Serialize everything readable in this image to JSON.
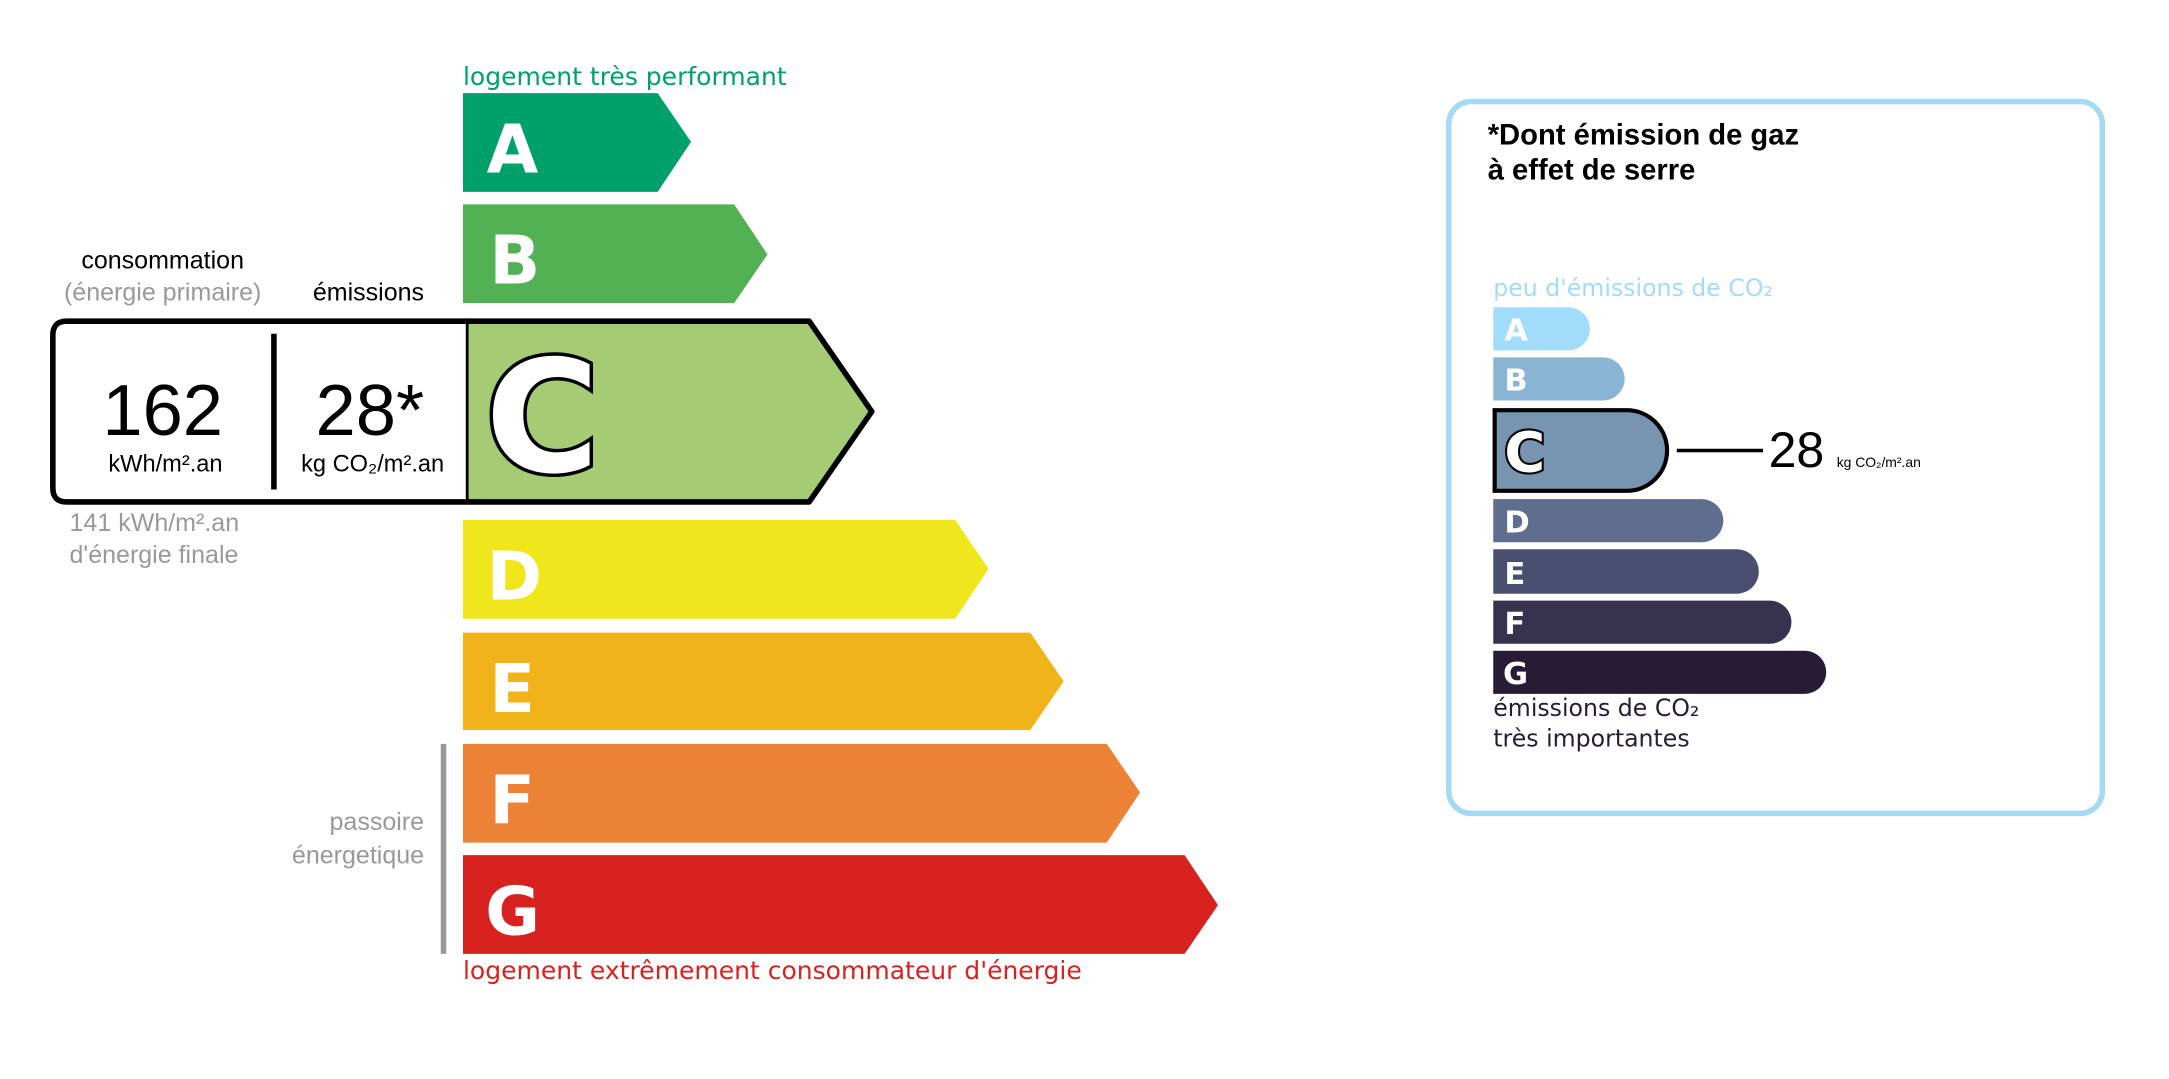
{
  "energy": {
    "top_label": "logement très performant",
    "bottom_label": "logement extrêmement consommateur d'énergie",
    "passoire_line1": "passoire",
    "passoire_line2": "énergetique",
    "classes": [
      {
        "letter": "A",
        "color": "#00a06a"
      },
      {
        "letter": "B",
        "color": "#51b153"
      },
      {
        "letter": "C",
        "color": "#a5cc74"
      },
      {
        "letter": "D",
        "color": "#f0e61c"
      },
      {
        "letter": "E",
        "color": "#f0b41a"
      },
      {
        "letter": "F",
        "color": "#eb8235"
      },
      {
        "letter": "G",
        "color": "#d7221f"
      }
    ],
    "current_class": "C",
    "consumption_heading": "consommation",
    "consumption_subheading": "(énergie primaire)",
    "emissions_heading": "émissions",
    "consumption_value": "162",
    "consumption_unit": "kWh/m².an",
    "emissions_value": "28*",
    "emissions_unit": "kg CO₂/m².an",
    "final_energy_value": "141 kWh/m².an",
    "final_energy_label": "d'énergie finale"
  },
  "ghg": {
    "title_line1": "*Dont émission de gaz",
    "title_line2": "à effet de serre",
    "top_label": "peu d'émissions de CO₂",
    "bottom_label_line1": "émissions de CO₂",
    "bottom_label_line2": "très importantes",
    "classes": [
      {
        "letter": "A",
        "color": "#a3dbfa"
      },
      {
        "letter": "B",
        "color": "#8ab4d4"
      },
      {
        "letter": "C",
        "color": "#7794b1"
      },
      {
        "letter": "D",
        "color": "#5f6d8f"
      },
      {
        "letter": "E",
        "color": "#4b4f6f"
      },
      {
        "letter": "F",
        "color": "#37334f"
      },
      {
        "letter": "G",
        "color": "#281b35"
      }
    ],
    "current_class": "C",
    "value": "28",
    "unit": "kg CO₂/m².an",
    "border_color": "#a6daf4"
  }
}
